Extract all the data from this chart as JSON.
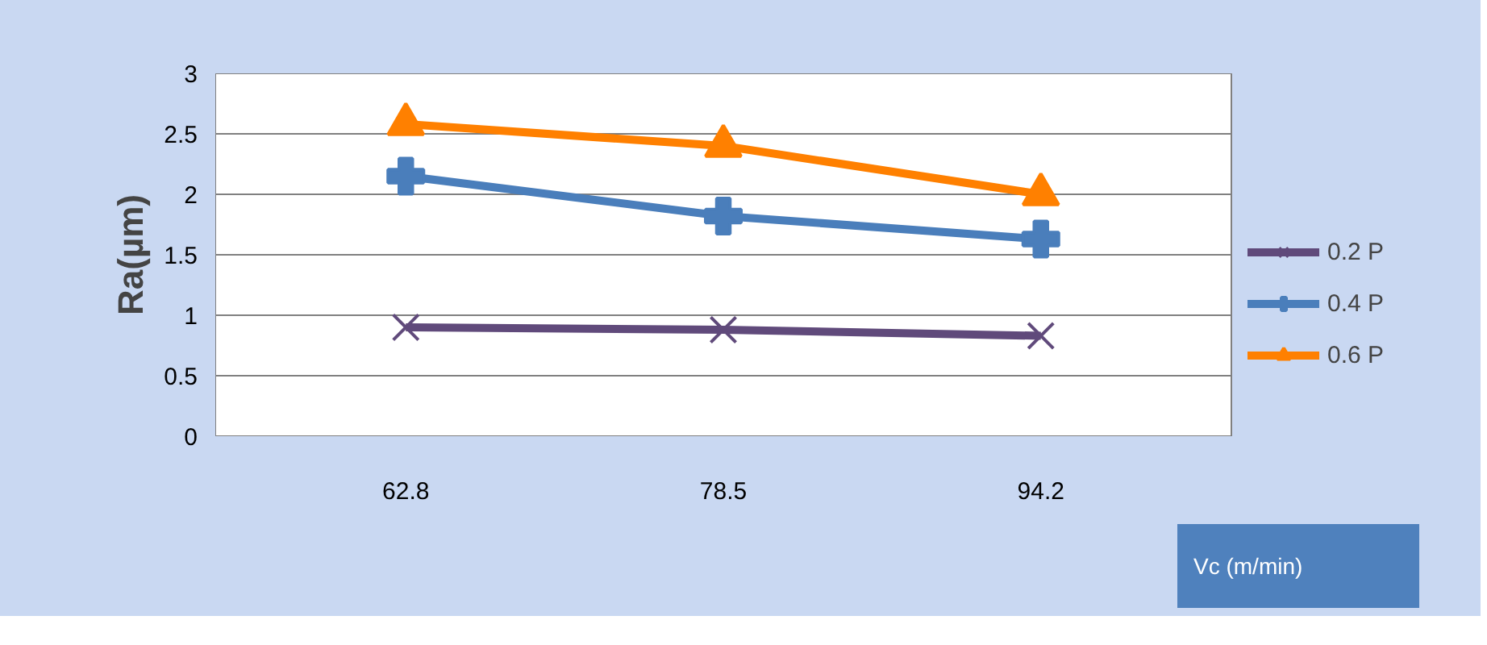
{
  "chart_data": {
    "type": "line",
    "ylabel": "Ra(µm)",
    "xlabel": "Vc (m/min)",
    "categories": [
      "62.8",
      "78.5",
      "94.2"
    ],
    "series": [
      {
        "name": "0.2 P",
        "color": "#604a7b",
        "marker": "x",
        "values": [
          0.9,
          0.88,
          0.83
        ]
      },
      {
        "name": "0.4 P",
        "color": "#4a7ebb",
        "marker": "cross",
        "values": [
          2.15,
          1.82,
          1.63
        ]
      },
      {
        "name": "0.6 P",
        "color": "#ff8000",
        "marker": "triangle",
        "values": [
          2.58,
          2.4,
          2.0
        ]
      }
    ],
    "ylim": [
      0,
      3
    ],
    "yticks": [
      0,
      0.5,
      1,
      1.5,
      2,
      2.5,
      3
    ],
    "grid": "y",
    "legend": "right"
  }
}
